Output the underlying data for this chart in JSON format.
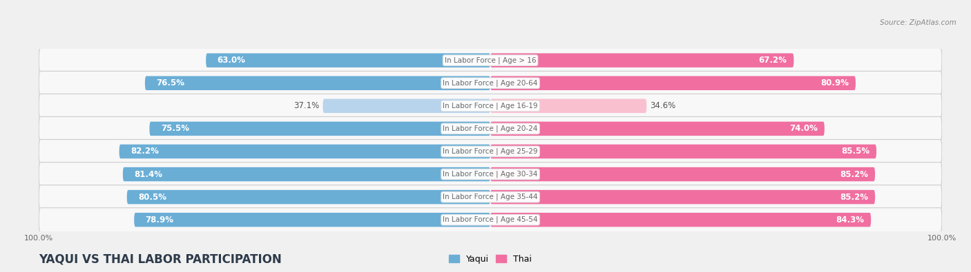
{
  "title": "YAQUI VS THAI LABOR PARTICIPATION",
  "source": "Source: ZipAtlas.com",
  "categories": [
    "In Labor Force | Age > 16",
    "In Labor Force | Age 20-64",
    "In Labor Force | Age 16-19",
    "In Labor Force | Age 20-24",
    "In Labor Force | Age 25-29",
    "In Labor Force | Age 30-34",
    "In Labor Force | Age 35-44",
    "In Labor Force | Age 45-54"
  ],
  "yaqui_values": [
    63.0,
    76.5,
    37.1,
    75.5,
    82.2,
    81.4,
    80.5,
    78.9
  ],
  "thai_values": [
    67.2,
    80.9,
    34.6,
    74.0,
    85.5,
    85.2,
    85.2,
    84.3
  ],
  "yaqui_color": "#6AAED6",
  "thai_color": "#F06FA0",
  "yaqui_light_color": "#B8D4EC",
  "thai_light_color": "#F9C0D0",
  "label_white": "#ffffff",
  "label_dark": "#555555",
  "bg_color": "#f0f0f0",
  "row_bg_color": "#e8e8e8",
  "row_pill_color": "#f8f8f8",
  "center_label_color": "#666666",
  "max_val": 100.0,
  "bar_height": 0.62,
  "title_fontsize": 12,
  "label_fontsize": 8.5,
  "tick_fontsize": 8
}
